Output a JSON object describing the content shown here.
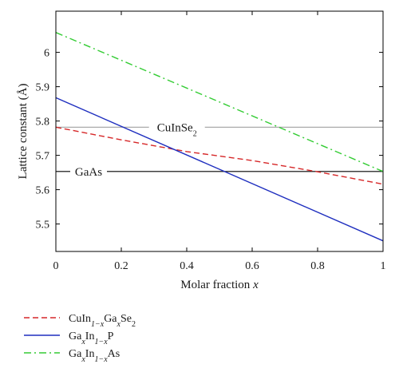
{
  "chart_data": {
    "type": "line",
    "title": "",
    "xlabel": "Molar fraction",
    "xlabel_var": "x",
    "ylabel": "Lattice constant (Å)",
    "xlim": [
      0,
      1
    ],
    "ylim": [
      5.42,
      6.12
    ],
    "grid": false,
    "legend_placement": "below",
    "x_ticks": [
      {
        "value": 0,
        "label": "0"
      },
      {
        "value": 0.2,
        "label": "0.2"
      },
      {
        "value": 0.4,
        "label": "0.4"
      },
      {
        "value": 0.6,
        "label": "0.6"
      },
      {
        "value": 0.8,
        "label": "0.8"
      },
      {
        "value": 1,
        "label": "1"
      }
    ],
    "y_ticks": [
      {
        "value": 5.5,
        "label": "5.5"
      },
      {
        "value": 5.6,
        "label": "5.6"
      },
      {
        "value": 5.7,
        "label": "5.7"
      },
      {
        "value": 5.8,
        "label": "5.8"
      },
      {
        "value": 5.9,
        "label": "5.9"
      },
      {
        "value": 6.0,
        "label": "6"
      }
    ],
    "series": [
      {
        "name": "CuIn1−xGaxSe2",
        "color": "#d62728",
        "dash": "dashed",
        "x": [
          0,
          0.2,
          0.4,
          0.6,
          0.8,
          1.0
        ],
        "y": [
          5.782,
          5.745,
          5.711,
          5.685,
          5.652,
          5.616
        ]
      },
      {
        "name": "GaxIn1−xP",
        "color": "#1f2fbf",
        "dash": "solid",
        "x": [
          0,
          1
        ],
        "y": [
          5.868,
          5.451
        ]
      },
      {
        "name": "GaxIn1−xAs",
        "color": "#33cc33",
        "dash": "dashdot",
        "x": [
          0,
          1
        ],
        "y": [
          6.058,
          5.653
        ]
      }
    ],
    "reference_lines": [
      {
        "label": "CuInSe2",
        "value": 5.782,
        "color": "#aaaaaa",
        "label_x": 0.37
      },
      {
        "label": "GaAs",
        "value": 5.653,
        "color": "#000000",
        "label_x": 0.1
      }
    ]
  }
}
